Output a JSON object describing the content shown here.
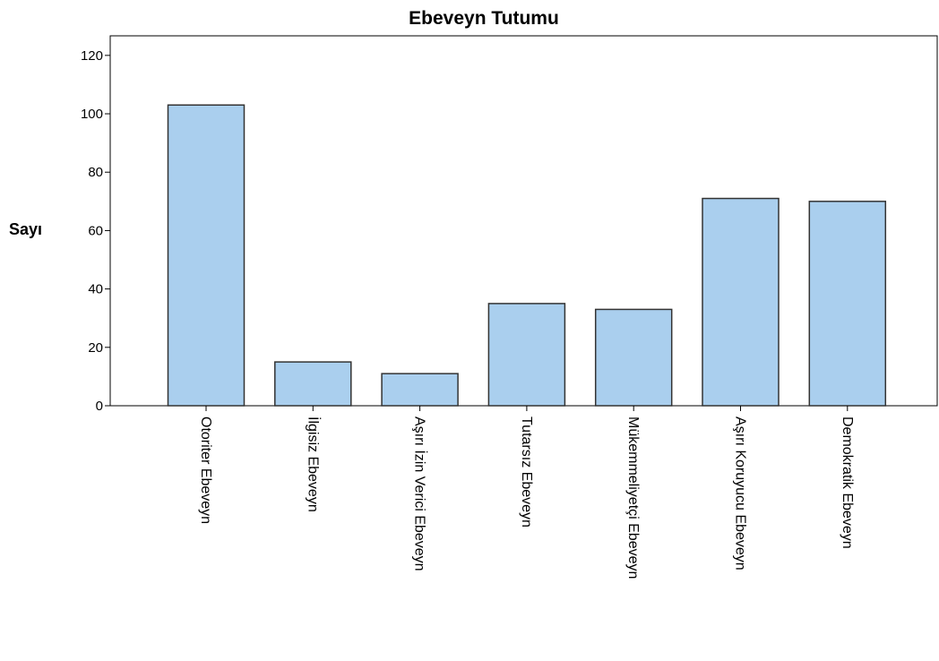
{
  "chart_data": {
    "type": "bar",
    "title": "Ebeveyn Tutumu",
    "y_label": "Sayı",
    "categories": [
      "Otoriter Ebeveyn",
      "İlgisiz Ebeveyn",
      "Aşırı İzin Verici Ebeveyn",
      "Tutarsız Ebeveyn",
      "Mükemmeliyetçi Ebeveyn",
      "Aşırı Koruyucu Ebeveyn",
      "Demokratik Ebeveyn"
    ],
    "values": [
      103,
      15,
      11,
      35,
      33,
      71,
      70
    ],
    "color": "#aacfee",
    "ylim": [
      0,
      126.7
    ],
    "yticks": [
      0,
      20,
      40,
      60,
      80,
      100,
      120
    ],
    "grid": false
  }
}
